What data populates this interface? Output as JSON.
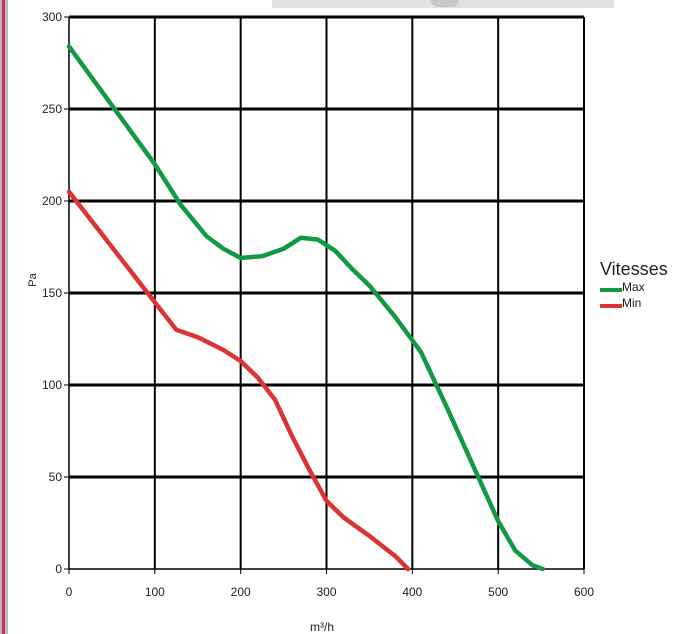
{
  "chart_data": {
    "type": "line",
    "xlabel": "m³/h",
    "ylabel": "Pa",
    "xlim": [
      0,
      600
    ],
    "ylim": [
      0,
      300
    ],
    "x_ticks": [
      0,
      100,
      200,
      300,
      400,
      500,
      600
    ],
    "y_ticks": [
      0,
      50,
      100,
      150,
      200,
      250,
      300
    ],
    "grid": true,
    "legend": {
      "title": "Vitesses",
      "placement": "right"
    },
    "series": [
      {
        "name": "Max",
        "color": "#119944",
        "x": [
          0,
          50,
          100,
          130,
          160,
          180,
          200,
          225,
          250,
          270,
          290,
          310,
          330,
          350,
          380,
          410,
          440,
          470,
          500,
          520,
          540,
          552
        ],
        "y": [
          284,
          252,
          220,
          198,
          181,
          174,
          169,
          170,
          174,
          180,
          179,
          173,
          163,
          154,
          137,
          118,
          88,
          57,
          26,
          10,
          2,
          0
        ]
      },
      {
        "name": "Min",
        "color": "#dd3333",
        "x": [
          0,
          50,
          100,
          125,
          150,
          180,
          200,
          220,
          240,
          260,
          280,
          300,
          320,
          350,
          380,
          395
        ],
        "y": [
          205,
          175,
          145,
          130,
          126,
          119,
          113,
          104,
          92,
          72,
          54,
          37,
          28,
          18,
          7,
          0
        ]
      }
    ]
  }
}
